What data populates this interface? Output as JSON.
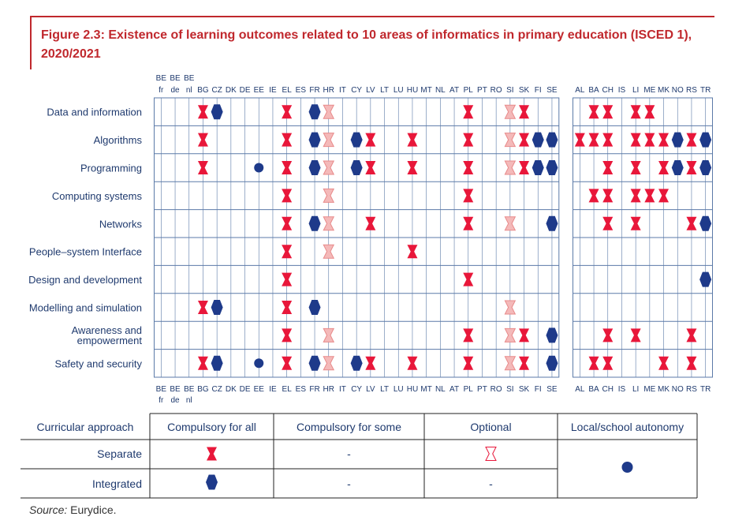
{
  "title": "Figure 2.3: Existence of learning outcomes related to 10 areas of informatics in primary education (ISCED 1), 2020/2021",
  "source": {
    "prefix": "Source:",
    "text": "Eurydice."
  },
  "colors": {
    "compulsory_separate": "#e8173a",
    "integrated": "#1e3a8a",
    "optional": "#f4b9b9",
    "grid": "#5b7aa8",
    "title": "#c0282d"
  },
  "chart_data": {
    "type": "table",
    "columns": [
      "BE fr",
      "BE de",
      "BE nl",
      "BG",
      "CZ",
      "DK",
      "DE",
      "EE",
      "IE",
      "EL",
      "ES",
      "FR",
      "HR",
      "IT",
      "CY",
      "LV",
      "LT",
      "LU",
      "HU",
      "MT",
      "NL",
      "AT",
      "PL",
      "PT",
      "RO",
      "SI",
      "SK",
      "FI",
      "SE",
      "",
      "AL",
      "BA",
      "CH",
      "IS",
      "LI",
      "ME",
      "MK",
      "NO",
      "RS",
      "TR"
    ],
    "rows": [
      "Data and information",
      "Algorithms",
      "Programming",
      "Computing systems",
      "Networks",
      "People–system Interface",
      "Design and development",
      "Modelling and simulation",
      "Awareness and empowerment",
      "Safety and security"
    ],
    "legend_codes": {
      "S": "Separate, compulsory for all",
      "I": "Integrated, compulsory for all",
      "O": "Separate, optional",
      "A": "Local/school autonomy"
    },
    "marks": [
      {
        "row": "Data and information",
        "BG": "S",
        "CZ": "I",
        "EL": "S",
        "FR": "I",
        "HR": "O",
        "PL": "S",
        "SI": "O",
        "SK": "S",
        "BA": "S",
        "CH": "S",
        "LI": "S",
        "ME": "S"
      },
      {
        "row": "Algorithms",
        "BG": "S",
        "EL": "S",
        "FR": "I",
        "HR": "O",
        "CY": "I",
        "LV": "S",
        "HU": "S",
        "PL": "S",
        "SI": "O",
        "SK": "S",
        "FI": "I",
        "SE": "I",
        "AL": "S",
        "BA": "S",
        "CH": "S",
        "LI": "S",
        "ME": "S",
        "MK": "S",
        "NO": "I",
        "RS": "S",
        "TR": "I"
      },
      {
        "row": "Programming",
        "BG": "S",
        "EE": "A",
        "EL": "S",
        "FR": "I",
        "HR": "O",
        "CY": "I",
        "LV": "S",
        "HU": "S",
        "PL": "S",
        "SI": "O",
        "SK": "S",
        "FI": "I",
        "SE": "I",
        "CH": "S",
        "LI": "S",
        "MK": "S",
        "NO": "I",
        "RS": "S",
        "TR": "I"
      },
      {
        "row": "Computing systems",
        "EL": "S",
        "HR": "O",
        "PL": "S",
        "BA": "S",
        "CH": "S",
        "LI": "S",
        "ME": "S",
        "MK": "S"
      },
      {
        "row": "Networks",
        "EL": "S",
        "FR": "I",
        "HR": "O",
        "LV": "S",
        "PL": "S",
        "SI": "O",
        "SE": "I",
        "CH": "S",
        "LI": "S",
        "RS": "S",
        "TR": "I"
      },
      {
        "row": "People–system Interface",
        "EL": "S",
        "HR": "O",
        "HU": "S"
      },
      {
        "row": "Design and development",
        "EL": "S",
        "PL": "S",
        "TR": "I"
      },
      {
        "row": "Modelling and simulation",
        "BG": "S",
        "CZ": "I",
        "EL": "S",
        "FR": "I",
        "SI": "O"
      },
      {
        "row": "Awareness and empowerment",
        "EL": "S",
        "HR": "O",
        "PL": "S",
        "SI": "O",
        "SK": "S",
        "SE": "I",
        "CH": "S",
        "LI": "S",
        "RS": "S"
      },
      {
        "row": "Safety and security",
        "BG": "S",
        "CZ": "I",
        "EE": "A",
        "EL": "S",
        "FR": "I",
        "HR": "O",
        "CY": "I",
        "LV": "S",
        "HU": "S",
        "PL": "S",
        "SI": "O",
        "SK": "S",
        "SE": "I",
        "BA": "S",
        "CH": "S",
        "MK": "S",
        "RS": "S"
      }
    ]
  },
  "legend": {
    "approach_label": "Curricular approach",
    "headers": [
      "Compulsory for all",
      "Compulsory for some",
      "Optional",
      "Local/school autonomy"
    ],
    "rows": [
      {
        "label": "Separate",
        "compulsory_for_some": "-",
        "optional_icon": "optional-separate"
      },
      {
        "label": "Integrated",
        "compulsory_for_some": "-",
        "optional": "-"
      }
    ]
  }
}
